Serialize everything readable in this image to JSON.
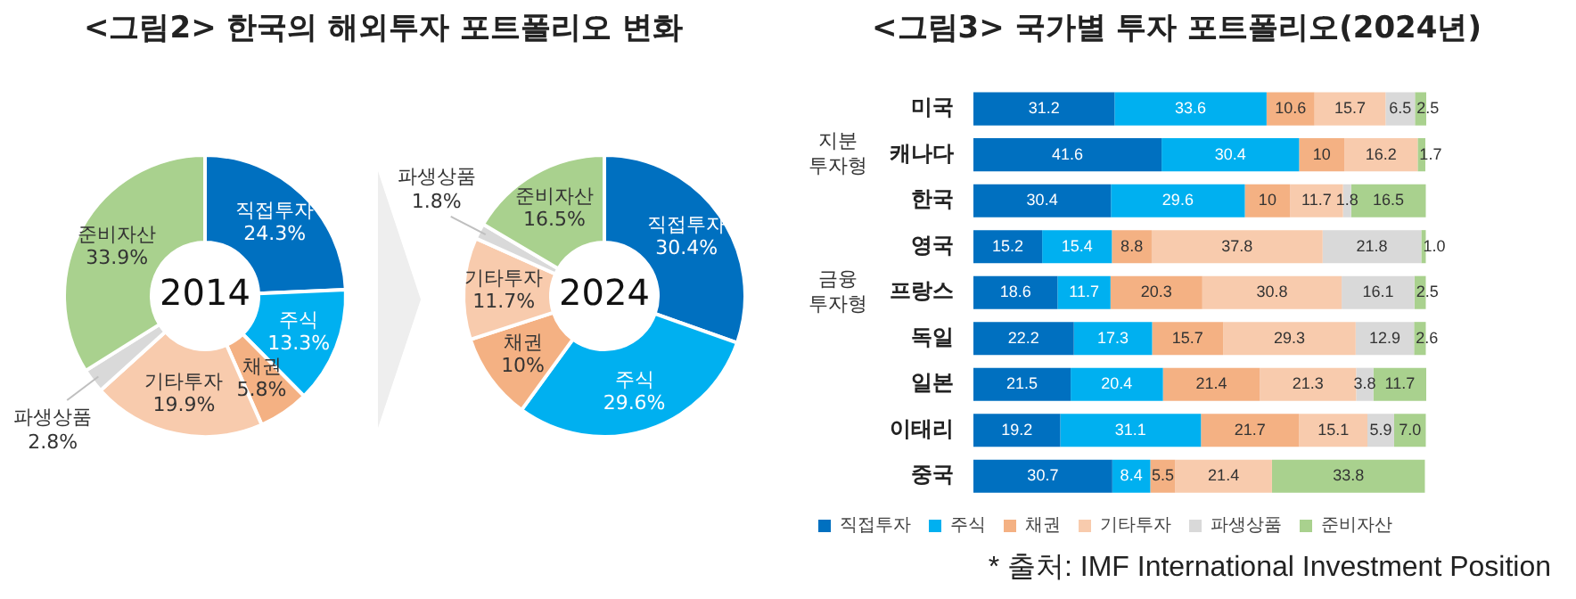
{
  "chart_data": [
    {
      "type": "donut",
      "title": "<그림2> 한국의 해외투자 포트폴리오 변화",
      "categories": [
        "직접투자",
        "주식",
        "채권",
        "기타투자",
        "파생상품",
        "준비자산"
      ],
      "values": [
        24.3,
        13.3,
        5.8,
        19.9,
        2.8,
        33.9
      ],
      "colors": [
        "#0070c0",
        "#00b0f0",
        "#f4b183",
        "#f8cbad",
        "#d9d9d9",
        "#a9d18e"
      ],
      "value_labels": [
        "24.3%",
        "13.3%",
        "5.8%",
        "19.9%",
        "2.8%",
        "33.9%"
      ],
      "annotations": [
        "2014"
      ]
    },
    {
      "type": "donut",
      "categories": [
        "직접투자",
        "주식",
        "채권",
        "기타투자",
        "파생상품",
        "준비자산"
      ],
      "values": [
        30.4,
        29.6,
        10,
        11.7,
        1.8,
        16.5
      ],
      "colors": [
        "#0070c0",
        "#00b0f0",
        "#f4b183",
        "#f8cbad",
        "#d9d9d9",
        "#a9d18e"
      ],
      "value_labels": [
        "30.4%",
        "29.6%",
        "10%",
        "11.7%",
        "1.8%",
        "16.5%"
      ],
      "annotations": [
        "2024"
      ]
    },
    {
      "type": "bar",
      "orientation": "horizontal",
      "stacked": true,
      "legend": "bottom",
      "title": "<그림3> 국가별 투자 포트폴리오(2024년)",
      "categories": [
        "미국",
        "캐나다",
        "한국",
        "영국",
        "프랑스",
        "독일",
        "일본",
        "이태리",
        "중국"
      ],
      "series": [
        {
          "name": "직접투자",
          "color": "#0070c0",
          "values": [
            31.2,
            41.6,
            30.4,
            15.2,
            18.6,
            22.2,
            21.5,
            19.2,
            30.7
          ],
          "value_labels": [
            "31.2",
            "41.6",
            "30.4",
            "15.2",
            "18.6",
            "22.2",
            "21.5",
            "19.2",
            "30.7"
          ]
        },
        {
          "name": "주식",
          "color": "#00b0f0",
          "values": [
            33.6,
            30.4,
            29.6,
            15.4,
            11.7,
            17.3,
            20.4,
            31.1,
            8.4
          ],
          "value_labels": [
            "33.6",
            "30.4",
            "29.6",
            "15.4",
            "11.7",
            "17.3",
            "20.4",
            "31.1",
            "8.4"
          ]
        },
        {
          "name": "채권",
          "color": "#f4b183",
          "values": [
            10.6,
            10,
            10,
            8.8,
            20.3,
            15.7,
            21.4,
            21.7,
            5.5
          ],
          "value_labels": [
            "10.6",
            "10",
            "10",
            "8.8",
            "20.3",
            "15.7",
            "21.4",
            "21.7",
            "5.5"
          ]
        },
        {
          "name": "기타투자",
          "color": "#f8cbad",
          "values": [
            15.7,
            16.2,
            11.7,
            37.8,
            30.8,
            29.3,
            21.3,
            15.1,
            21.4
          ],
          "value_labels": [
            "15.7",
            "16.2",
            "11.7",
            "37.8",
            "30.8",
            "29.3",
            "21.3",
            "15.1",
            "21.4"
          ]
        },
        {
          "name": "파생상품",
          "color": "#d9d9d9",
          "values": [
            6.5,
            null,
            1.8,
            21.8,
            16.1,
            12.9,
            3.8,
            5.9,
            null
          ],
          "value_labels": [
            "6.5",
            null,
            "1.8",
            "21.8",
            "16.1",
            "12.9",
            "3.8",
            "5.9",
            null
          ]
        },
        {
          "name": "준비자산",
          "color": "#a9d18e",
          "values": [
            2.5,
            1.7,
            16.5,
            1.0,
            2.5,
            2.6,
            11.7,
            7.0,
            33.8
          ],
          "value_labels": [
            "2.5",
            "1.7",
            "16.5",
            "1.0",
            "2.5",
            "2.6",
            "11.7",
            "7.0",
            "33.8"
          ]
        }
      ],
      "annotations": [
        "지분 투자형",
        "금융 투자형",
        "* 출처: IMF International Investment Position"
      ]
    }
  ]
}
